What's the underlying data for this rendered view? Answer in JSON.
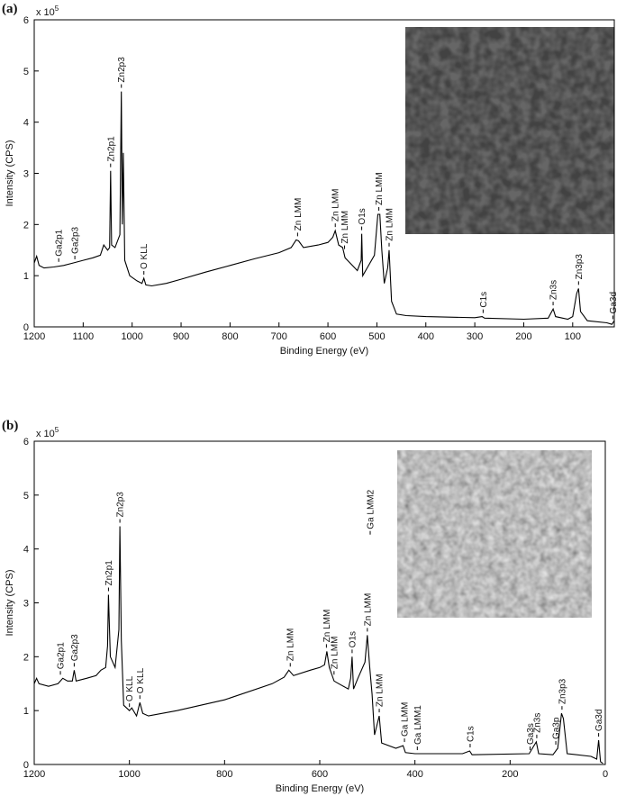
{
  "chart_data": [
    {
      "type": "line",
      "panel_label": "(a)",
      "x_label": "Binding Energy (eV)",
      "y_label": "Intensity (CPS)",
      "y_scale_base": "x 10",
      "y_scale_exponent": "5",
      "color": "#000000",
      "xlim": [
        1200,
        15
      ],
      "xticks": [
        1200,
        1100,
        1000,
        900,
        800,
        700,
        600,
        500,
        400,
        300,
        200,
        100
      ],
      "ylim": [
        0,
        6
      ],
      "yticks": [
        0,
        1,
        2,
        3,
        4,
        5,
        6
      ],
      "x": [
        1200,
        1195,
        1190,
        1180,
        1160,
        1140,
        1120,
        1100,
        1080,
        1065,
        1058,
        1050,
        1046,
        1044,
        1042,
        1035,
        1025,
        1022,
        1020,
        1018,
        1015,
        1005,
        990,
        980,
        976,
        972,
        960,
        930,
        900,
        850,
        800,
        750,
        700,
        675,
        665,
        660,
        650,
        620,
        600,
        590,
        585,
        578,
        570,
        565,
        560,
        550,
        540,
        532,
        531,
        529,
        520,
        505,
        498,
        494,
        490,
        485,
        478,
        475,
        470,
        460,
        440,
        400,
        300,
        285,
        280,
        200,
        150,
        140,
        135,
        110,
        100,
        92,
        88,
        84,
        70,
        30,
        20,
        15
      ],
      "values": [
        1.25,
        1.38,
        1.2,
        1.15,
        1.17,
        1.2,
        1.25,
        1.3,
        1.35,
        1.4,
        1.6,
        1.5,
        1.55,
        3.05,
        1.6,
        1.55,
        1.8,
        4.6,
        2.0,
        3.4,
        1.3,
        1.0,
        0.9,
        0.85,
        0.95,
        0.82,
        0.8,
        0.85,
        0.93,
        1.07,
        1.2,
        1.33,
        1.45,
        1.55,
        1.7,
        1.68,
        1.55,
        1.6,
        1.65,
        1.75,
        1.88,
        1.6,
        1.55,
        1.35,
        1.3,
        1.2,
        1.1,
        1.3,
        1.82,
        1.0,
        1.15,
        1.4,
        2.2,
        2.2,
        1.5,
        0.85,
        1.15,
        1.5,
        0.5,
        0.25,
        0.22,
        0.2,
        0.18,
        0.2,
        0.17,
        0.15,
        0.17,
        0.35,
        0.2,
        0.15,
        0.2,
        0.65,
        0.75,
        0.3,
        0.12,
        0.08,
        0.05,
        0.12
      ],
      "annotations": [
        {
          "text": "Ga2p1",
          "x": 1150,
          "y": 1.2
        },
        {
          "text": "Ga2p3",
          "x": 1117,
          "y": 1.25
        },
        {
          "text": "Zn2p1",
          "x": 1044,
          "y": 3.05
        },
        {
          "text": "Zn2p3",
          "x": 1022,
          "y": 4.6
        },
        {
          "text": "O KLL",
          "x": 976,
          "y": 0.95
        },
        {
          "text": "Zn LMM",
          "x": 662,
          "y": 1.7
        },
        {
          "text": "Zn LMM",
          "x": 585,
          "y": 1.88
        },
        {
          "text": "Zn LMM",
          "x": 566,
          "y": 1.45
        },
        {
          "text": "O1s",
          "x": 531,
          "y": 1.82
        },
        {
          "text": "Zn LMM",
          "x": 496,
          "y": 2.2
        },
        {
          "text": "Zn LMM",
          "x": 475,
          "y": 1.5
        },
        {
          "text": "C1s",
          "x": 283,
          "y": 0.2
        },
        {
          "text": "Zn3s",
          "x": 140,
          "y": 0.35
        },
        {
          "text": "Zn3p3",
          "x": 88,
          "y": 0.75
        },
        {
          "text": "Ga3d",
          "x": 18,
          "y": 0.08
        }
      ]
    },
    {
      "type": "line",
      "panel_label": "(b)",
      "x_label": "Binding Energy (eV)",
      "y_label": "Intensity (CPS)",
      "y_scale_base": "x 10",
      "y_scale_exponent": "5",
      "color": "#000000",
      "xlim": [
        1200,
        0
      ],
      "xticks": [
        1200,
        1000,
        800,
        600,
        400,
        200,
        0
      ],
      "ylim": [
        0,
        6
      ],
      "yticks": [
        0,
        1,
        2,
        3,
        4,
        5,
        6
      ],
      "x": [
        1200,
        1195,
        1190,
        1170,
        1150,
        1140,
        1130,
        1120,
        1116,
        1112,
        1090,
        1070,
        1060,
        1050,
        1046,
        1044,
        1040,
        1030,
        1022,
        1020,
        1017,
        1012,
        1000,
        995,
        985,
        978,
        972,
        960,
        900,
        800,
        700,
        675,
        665,
        655,
        620,
        600,
        590,
        585,
        580,
        570,
        560,
        540,
        535,
        532,
        529,
        520,
        505,
        500,
        495,
        490,
        485,
        475,
        470,
        440,
        425,
        420,
        400,
        300,
        285,
        280,
        160,
        145,
        140,
        110,
        100,
        92,
        88,
        80,
        30,
        18,
        14,
        10,
        5
      ],
      "values": [
        1.5,
        1.6,
        1.5,
        1.45,
        1.5,
        1.6,
        1.55,
        1.55,
        1.75,
        1.55,
        1.6,
        1.65,
        1.75,
        1.8,
        2.2,
        3.15,
        2.0,
        1.8,
        2.5,
        4.42,
        2.3,
        1.1,
        1.0,
        1.05,
        0.9,
        1.15,
        0.95,
        0.9,
        1.0,
        1.2,
        1.5,
        1.62,
        1.75,
        1.65,
        1.75,
        1.8,
        1.85,
        2.1,
        1.8,
        1.55,
        1.5,
        1.4,
        1.6,
        2.0,
        1.4,
        1.6,
        1.9,
        2.4,
        1.8,
        1.3,
        0.55,
        0.9,
        0.4,
        0.3,
        0.35,
        0.22,
        0.2,
        0.2,
        0.25,
        0.18,
        0.2,
        0.42,
        0.2,
        0.18,
        0.3,
        0.95,
        0.85,
        0.2,
        0.15,
        0.1,
        0.45,
        0.05,
        0.02
      ],
      "annotations": [
        {
          "text": "Ga2p1",
          "x": 1145,
          "y": 1.6
        },
        {
          "text": "Ga2p3",
          "x": 1116,
          "y": 1.75
        },
        {
          "text": "Zn2p1",
          "x": 1044,
          "y": 3.15
        },
        {
          "text": "Zn2p3",
          "x": 1020,
          "y": 4.42
        },
        {
          "text": "O KLL",
          "x": 1000,
          "y": 1.0
        },
        {
          "text": "O KLL",
          "x": 978,
          "y": 1.15
        },
        {
          "text": "Zn LMM",
          "x": 662,
          "y": 1.75
        },
        {
          "text": "Zn LMM",
          "x": 586,
          "y": 2.1
        },
        {
          "text": "Zn LMM",
          "x": 570,
          "y": 1.6
        },
        {
          "text": "O1s",
          "x": 532,
          "y": 2.0
        },
        {
          "text": "Zn LMM",
          "x": 500,
          "y": 2.4
        },
        {
          "text": "Ga LMM2",
          "x": 494,
          "y": 4.2
        },
        {
          "text": "Zn LMM",
          "x": 475,
          "y": 0.9
        },
        {
          "text": "Ga LMM",
          "x": 422,
          "y": 0.35
        },
        {
          "text": "Ga LMM1",
          "x": 395,
          "y": 0.2
        },
        {
          "text": "C1s",
          "x": 284,
          "y": 0.25
        },
        {
          "text": "Ga3s",
          "x": 158,
          "y": 0.2
        },
        {
          "text": "Zn3s",
          "x": 144,
          "y": 0.42
        },
        {
          "text": "Ga3p",
          "x": 104,
          "y": 0.3
        },
        {
          "text": "Zn3p3",
          "x": 91,
          "y": 0.95
        },
        {
          "text": "Ga3d",
          "x": 14,
          "y": 0.45
        }
      ]
    }
  ]
}
